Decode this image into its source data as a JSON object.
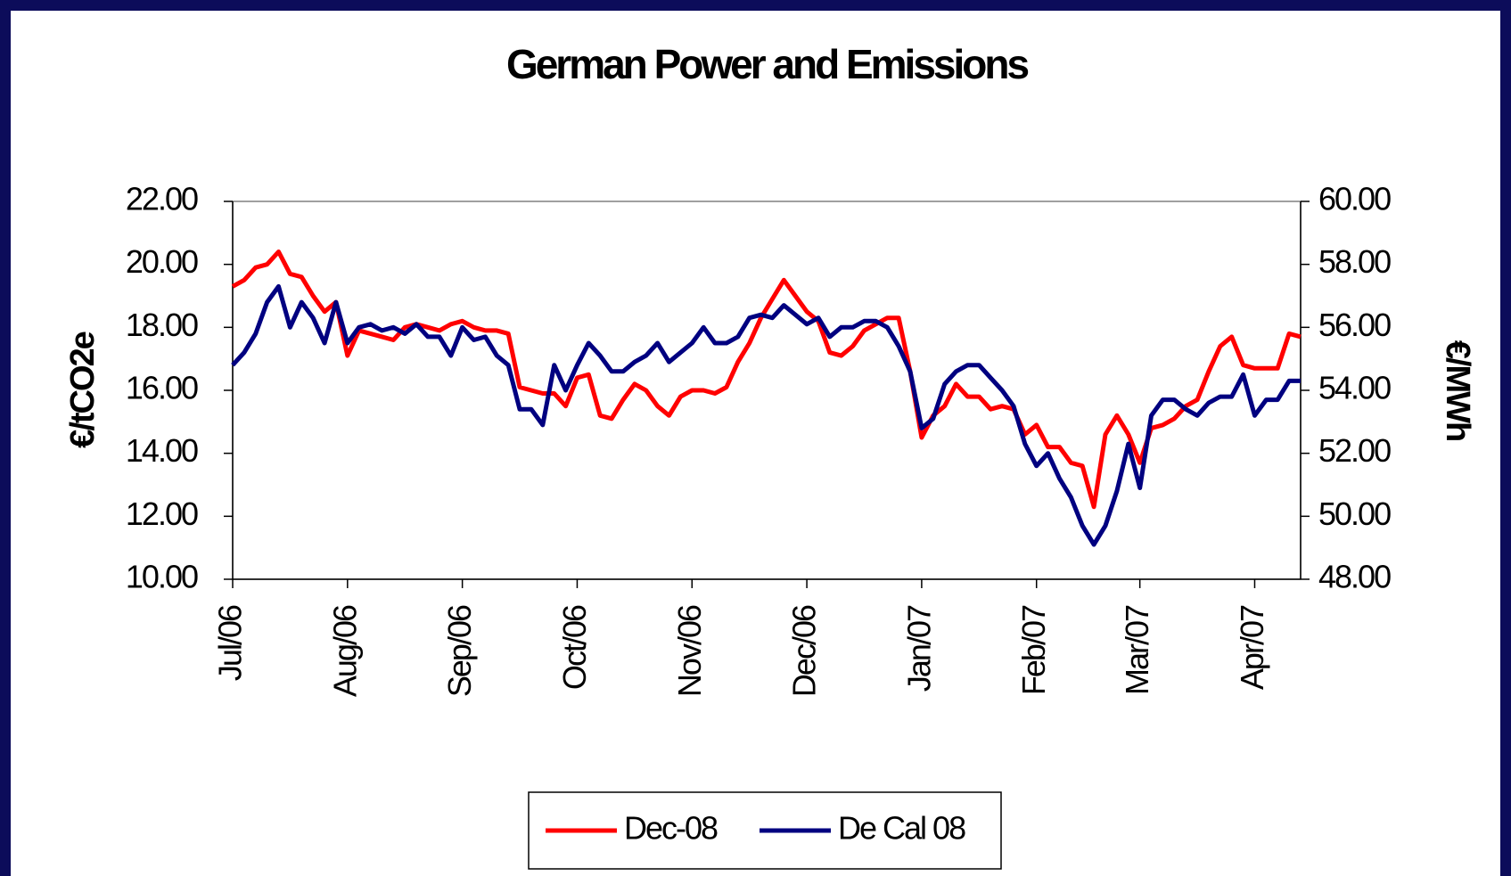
{
  "chart_data": {
    "type": "line",
    "title": "German Power and Emissions",
    "y_label": "€/tCO2e",
    "y2_label": "€/MWh",
    "categories": [
      "Jul/06",
      null,
      null,
      null,
      null,
      null,
      null,
      null,
      null,
      null,
      "Aug/06",
      null,
      null,
      null,
      null,
      null,
      null,
      null,
      null,
      null,
      "Sep/06",
      null,
      null,
      null,
      null,
      null,
      null,
      null,
      null,
      null,
      "Oct/06",
      null,
      null,
      null,
      null,
      null,
      null,
      null,
      null,
      null,
      "Nov/06",
      null,
      null,
      null,
      null,
      null,
      null,
      null,
      null,
      null,
      "Dec/06",
      null,
      null,
      null,
      null,
      null,
      null,
      null,
      null,
      null,
      "Jan/07",
      null,
      null,
      null,
      null,
      null,
      null,
      null,
      null,
      null,
      "Feb/07",
      null,
      null,
      null,
      null,
      null,
      null,
      null,
      null,
      "Mar/07",
      null,
      null,
      null,
      null,
      null,
      null,
      null,
      null,
      null,
      "Apr/07",
      null,
      null,
      null,
      null
    ],
    "series": [
      {
        "name": "Dec-08",
        "color": "#ff0000",
        "axis": "y",
        "values": [
          19.3,
          19.5,
          19.9,
          20.0,
          20.4,
          19.7,
          19.6,
          19.0,
          18.5,
          18.8,
          17.1,
          17.9,
          17.8,
          17.7,
          17.6,
          18.0,
          18.1,
          18.0,
          17.9,
          18.1,
          18.2,
          18.0,
          17.9,
          17.9,
          17.8,
          16.1,
          16.0,
          15.9,
          15.9,
          15.5,
          16.4,
          16.5,
          15.2,
          15.1,
          15.7,
          16.2,
          16.0,
          15.5,
          15.2,
          15.8,
          16.0,
          16.0,
          15.9,
          16.1,
          16.9,
          17.5,
          18.3,
          18.9,
          19.5,
          19.0,
          18.5,
          18.2,
          17.2,
          17.1,
          17.4,
          17.9,
          18.1,
          18.3,
          18.3,
          16.6,
          14.5,
          15.2,
          15.5,
          16.2,
          15.8,
          15.8,
          15.4,
          15.5,
          15.4,
          14.6,
          14.9,
          14.2,
          14.2,
          13.7,
          13.6,
          12.3,
          14.6,
          15.2,
          14.6,
          13.7,
          14.8,
          14.9,
          15.1,
          15.5,
          15.7,
          16.6,
          17.4,
          17.7,
          16.8,
          16.7,
          16.7,
          16.7,
          17.8,
          17.7
        ]
      },
      {
        "name": "De Cal 08",
        "color": "#000080",
        "axis": "y2",
        "values": [
          54.8,
          55.2,
          55.8,
          56.8,
          57.3,
          56.0,
          56.8,
          56.3,
          55.5,
          56.8,
          55.5,
          56.0,
          56.1,
          55.9,
          56.0,
          55.8,
          56.1,
          55.7,
          55.7,
          55.1,
          56.0,
          55.6,
          55.7,
          55.1,
          54.8,
          53.4,
          53.4,
          52.9,
          54.8,
          54.0,
          54.8,
          55.5,
          55.1,
          54.6,
          54.6,
          54.9,
          55.1,
          55.5,
          54.9,
          55.2,
          55.5,
          56.0,
          55.5,
          55.5,
          55.7,
          56.3,
          56.4,
          56.3,
          56.7,
          56.4,
          56.1,
          56.3,
          55.7,
          56.0,
          56.0,
          56.2,
          56.2,
          56.0,
          55.4,
          54.6,
          52.8,
          53.1,
          54.2,
          54.6,
          54.8,
          54.8,
          54.4,
          54.0,
          53.5,
          52.3,
          51.6,
          52.0,
          51.2,
          50.6,
          49.7,
          49.1,
          49.7,
          50.8,
          52.3,
          50.9,
          53.2,
          53.7,
          53.7,
          53.4,
          53.2,
          53.6,
          53.8,
          53.8,
          54.5,
          53.2,
          53.7,
          53.7,
          54.3,
          54.3
        ]
      }
    ],
    "ylim": [
      10,
      22
    ],
    "yticks": [
      {
        "value": 10,
        "label": "10.00"
      },
      {
        "value": 12,
        "label": "12.00"
      },
      {
        "value": 14,
        "label": "14.00"
      },
      {
        "value": 16,
        "label": "16.00"
      },
      {
        "value": 18,
        "label": "18.00"
      },
      {
        "value": 20,
        "label": "20.00"
      },
      {
        "value": 22,
        "label": "22.00"
      }
    ],
    "y2lim": [
      48,
      60
    ],
    "y2ticks": [
      {
        "value": 48,
        "label": "48.00"
      },
      {
        "value": 50,
        "label": "50.00"
      },
      {
        "value": 52,
        "label": "52.00"
      },
      {
        "value": 54,
        "label": "54.00"
      },
      {
        "value": 56,
        "label": "56.00"
      },
      {
        "value": 58,
        "label": "58.00"
      },
      {
        "value": 60,
        "label": "60.00"
      }
    ],
    "legend": "bottom"
  }
}
